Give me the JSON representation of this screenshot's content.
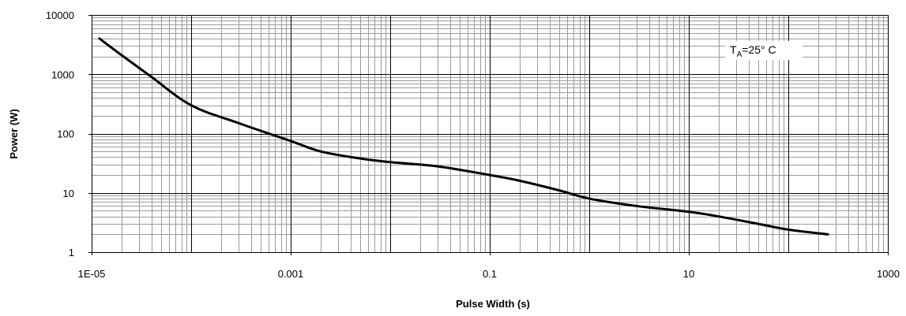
{
  "chart_data": {
    "type": "line",
    "title": "",
    "xlabel": "Pulse Width (s)",
    "ylabel": "Power (W)",
    "x_scale": "log",
    "y_scale": "log",
    "xlim": [
      1e-05,
      1000
    ],
    "ylim": [
      1,
      10000
    ],
    "x_tick_values": [
      1e-05,
      0.001,
      0.1,
      10,
      1000
    ],
    "x_tick_labels": [
      "1E-05",
      "0.001",
      "0.1",
      "10",
      "1000"
    ],
    "y_tick_values": [
      1,
      10,
      100,
      1000,
      10000
    ],
    "y_tick_labels": [
      "1",
      "10",
      "100",
      "1000",
      "10000"
    ],
    "grid": true,
    "annotation": {
      "main": "T",
      "sub": "A",
      "rest": "=25° C"
    },
    "series": [
      {
        "color": "#000000",
        "x": [
          1.2e-05,
          2e-05,
          4e-05,
          0.0001,
          0.0003,
          0.001,
          0.002,
          0.005,
          0.01,
          0.03,
          0.1,
          0.2,
          0.5,
          1,
          3,
          10,
          20,
          50,
          100,
          250
        ],
        "y": [
          4000,
          2100,
          900,
          300,
          150,
          75,
          50,
          38,
          33,
          28,
          20,
          16,
          11,
          8,
          6,
          4.8,
          4.0,
          3.0,
          2.4,
          2.0
        ]
      }
    ]
  }
}
